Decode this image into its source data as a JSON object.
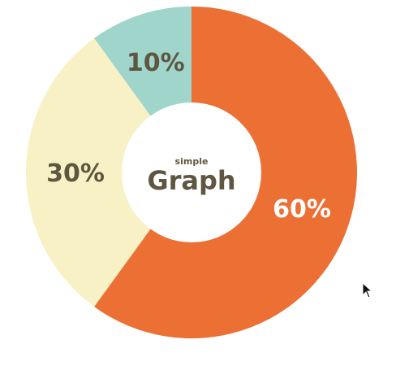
{
  "chart_data": {
    "type": "pie",
    "donut": true,
    "categories": [
      "60%",
      "30%",
      "10%"
    ],
    "values": [
      60,
      30,
      10
    ],
    "colors": [
      "#ec6f34",
      "#f7f1c5",
      "#a0d5cc"
    ],
    "label_colors": [
      "#ffffff",
      "#5e5640",
      "#5e5640"
    ],
    "labels": [
      "60%",
      "30%",
      "10%"
    ],
    "center_text": {
      "subtitle": "simple",
      "title": "Graph"
    }
  },
  "cursor": {
    "icon": "mouse-pointer-icon"
  }
}
